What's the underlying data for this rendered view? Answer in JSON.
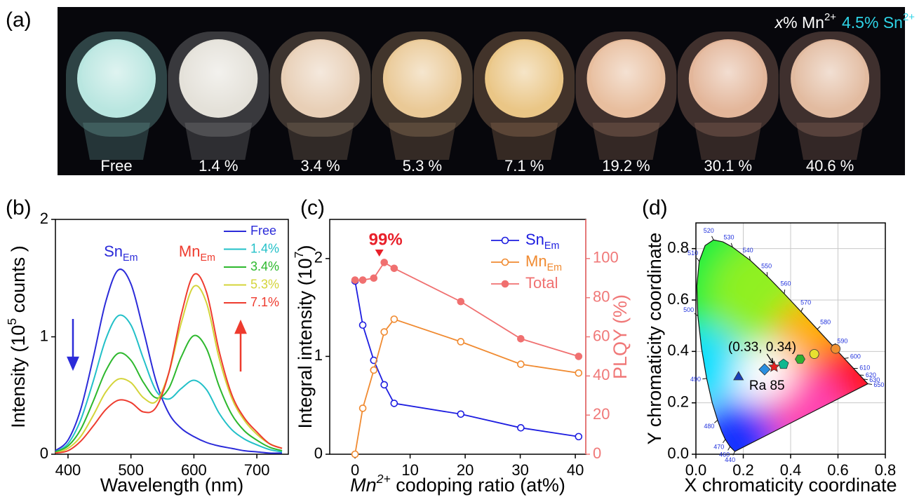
{
  "panel_a": {
    "label": "(a)",
    "caption": [
      [
        "x",
        "% Mn",
        "2+"
      ],
      [
        "4.5% Sn",
        "2+"
      ]
    ],
    "samples": [
      "Free",
      "1.4 %",
      "3.4 %",
      "5.3 %",
      "7.1 %",
      "19.2 %",
      "30.1 %",
      "40.6 %"
    ]
  },
  "chart_data": [
    {
      "type": "line",
      "label": "(b)",
      "xlabel": "Wavelength (nm)",
      "ylabel": [
        "Intensity (10",
        "5",
        " counts )"
      ],
      "x": [
        380,
        400,
        420,
        440,
        460,
        480,
        500,
        520,
        540,
        560,
        580,
        600,
        620,
        640,
        660,
        680,
        700,
        720,
        740
      ],
      "xlim": [
        380,
        750
      ],
      "xticks": [
        400,
        500,
        600,
        700
      ],
      "ylim": [
        0,
        2
      ],
      "yticks": [
        0,
        1,
        2
      ],
      "legend": "upper right",
      "annotations": [
        [
          "Sn",
          "Em"
        ],
        [
          "Mn",
          "Em"
        ]
      ],
      "series": [
        {
          "name": "Free",
          "color": "#2b2bd9",
          "values": [
            0.03,
            0.12,
            0.38,
            0.82,
            1.3,
            1.57,
            1.45,
            1.05,
            0.62,
            0.35,
            0.22,
            0.15,
            0.1,
            0.07,
            0.05,
            0.03,
            0.02,
            0.01,
            0.01
          ]
        },
        {
          "name": "1.4%",
          "color": "#22c0c8",
          "values": [
            0.02,
            0.09,
            0.29,
            0.62,
            0.98,
            1.18,
            1.1,
            0.81,
            0.54,
            0.47,
            0.56,
            0.63,
            0.55,
            0.35,
            0.21,
            0.13,
            0.08,
            0.04,
            0.02
          ]
        },
        {
          "name": "3.4%",
          "color": "#2db82d",
          "values": [
            0.02,
            0.07,
            0.21,
            0.45,
            0.71,
            0.86,
            0.8,
            0.61,
            0.48,
            0.56,
            0.83,
            1.01,
            0.9,
            0.58,
            0.34,
            0.2,
            0.12,
            0.06,
            0.03
          ]
        },
        {
          "name": "5.3%",
          "color": "#d4d43a",
          "values": [
            0.01,
            0.05,
            0.15,
            0.33,
            0.53,
            0.64,
            0.61,
            0.48,
            0.45,
            0.69,
            1.12,
            1.43,
            1.29,
            0.82,
            0.48,
            0.29,
            0.17,
            0.09,
            0.05
          ]
        },
        {
          "name": "7.1%",
          "color": "#ee3b2e",
          "values": [
            0.01,
            0.03,
            0.11,
            0.24,
            0.38,
            0.46,
            0.44,
            0.36,
            0.4,
            0.69,
            1.19,
            1.53,
            1.38,
            0.88,
            0.51,
            0.31,
            0.19,
            0.09,
            0.05
          ]
        }
      ]
    },
    {
      "type": "line",
      "label": "(c)",
      "xlabel": [
        "Mn",
        "2+",
        " codoping ratio (at%)"
      ],
      "ylabel": [
        "Integral intensity (10",
        "7",
        ")"
      ],
      "y2label": "PLQY (%)",
      "y2color": "#f07878",
      "annotation": "99%",
      "legend": "upper right",
      "x": [
        0,
        1.4,
        3.4,
        5.3,
        7.1,
        19.2,
        30.1,
        40.6
      ],
      "xlim": [
        -4.6,
        41.9
      ],
      "xticks": [
        0,
        10,
        20,
        30,
        40
      ],
      "ylim": [
        0,
        2.4
      ],
      "yticks": [
        0,
        1,
        2
      ],
      "y2lim": [
        0,
        120
      ],
      "y2ticks": [
        0,
        20,
        40,
        60,
        80,
        100
      ],
      "series": [
        {
          "name": [
            "Sn",
            "Em"
          ],
          "color": "#1d1de0",
          "marker": "open-circle",
          "values": [
            1.77,
            1.32,
            0.96,
            0.71,
            0.52,
            0.41,
            0.27,
            0.18
          ]
        },
        {
          "name": [
            "Mn",
            "Em"
          ],
          "color": "#f08a30",
          "marker": "open-circle",
          "values": [
            0,
            0.47,
            0.86,
            1.25,
            1.38,
            1.15,
            0.92,
            0.83
          ]
        },
        {
          "name": [
            "Total"
          ],
          "color": "#f07070",
          "marker": "filled-circle",
          "axis": "y2",
          "values": [
            89,
            89,
            90,
            98,
            95,
            78,
            59,
            50
          ]
        }
      ]
    },
    {
      "type": "cie",
      "label": "(d)",
      "xlabel": "X chromaticity coordinate",
      "ylabel": "Y chromaticity coordinate",
      "grid": true,
      "xlim": [
        0,
        0.8
      ],
      "xticks": [
        {
          "value": 0,
          "label": "0.0"
        },
        0.2,
        0.4,
        0.6,
        0.8
      ],
      "ylim": [
        0,
        0.9
      ],
      "yticks": [
        {
          "value": 0,
          "label": "0.0"
        },
        0.2,
        0.4,
        0.6,
        0.8
      ],
      "locus": {
        "wavelengths": [
          440,
          460,
          470,
          null,
          480,
          null,
          490,
          null,
          500,
          null,
          510,
          null,
          520,
          null,
          530,
          540,
          550,
          560,
          570,
          580,
          590,
          600,
          610,
          620,
          630,
          650
        ],
        "x": [
          0.1644,
          0.144,
          0.1241,
          0.1096,
          0.0913,
          0.0687,
          0.0454,
          0.0235,
          0.0082,
          0.0039,
          0.0139,
          0.0389,
          0.0743,
          0.1142,
          0.1547,
          0.2296,
          0.3016,
          0.3731,
          0.4441,
          0.5125,
          0.5752,
          0.627,
          0.6658,
          0.6915,
          0.7079,
          0.726
        ],
        "y": [
          0.0109,
          0.0297,
          0.0578,
          0.0868,
          0.1327,
          0.2007,
          0.295,
          0.4127,
          0.5384,
          0.6548,
          0.7502,
          0.812,
          0.8338,
          0.8262,
          0.8059,
          0.7543,
          0.6923,
          0.6245,
          0.5547,
          0.4866,
          0.4242,
          0.3725,
          0.334,
          0.3083,
          0.292,
          0.274
        ]
      },
      "points": {
        "x": [
          0.18,
          0.29,
          0.33,
          0.37,
          0.44,
          0.5,
          0.59
        ],
        "y": [
          0.3,
          0.33,
          0.34,
          0.35,
          0.37,
          0.39,
          0.41
        ],
        "colors": [
          "#1a3fb8",
          "#2a8fe0",
          "#e82020",
          "#10b890",
          "#30b030",
          "#e8e030",
          "#f09030"
        ],
        "markers": [
          "triangle",
          "diamond",
          "star",
          "pentagon",
          "hexagon",
          "circle",
          "circle"
        ]
      },
      "annotations": [
        "(0.33, 0.34)",
        "Ra 85"
      ]
    }
  ]
}
